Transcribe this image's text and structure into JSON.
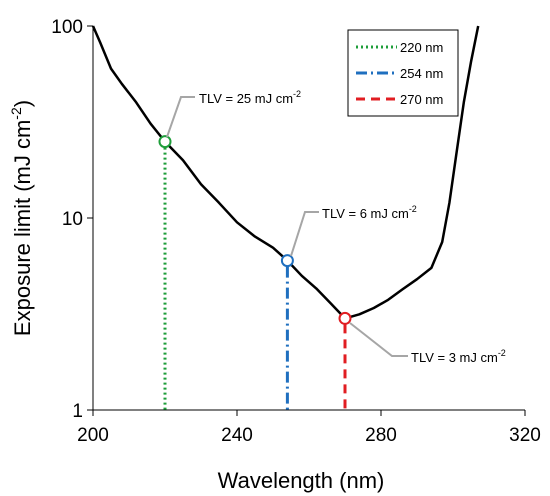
{
  "chart_data": {
    "type": "line",
    "title": "",
    "xlabel": "Wavelength (nm)",
    "ylabel": "Exposure limit (mJ cm",
    "ylabel_sup": "-2",
    "ylabel_close": ")",
    "xlim": [
      200,
      320
    ],
    "ylim": [
      1,
      100
    ],
    "yscale": "log",
    "grid": false,
    "legend_position": "top-right",
    "x_ticks": [
      {
        "value": 200,
        "label": "200"
      },
      {
        "value": 240,
        "label": "240"
      },
      {
        "value": 280,
        "label": "280"
      },
      {
        "value": 320,
        "label": "320"
      }
    ],
    "y_ticks": [
      {
        "value": 1,
        "label": "1"
      },
      {
        "value": 10,
        "label": "10"
      },
      {
        "value": 100,
        "label": "100"
      }
    ],
    "curve": {
      "color": "#000000",
      "points": [
        [
          200,
          100
        ],
        [
          202,
          82
        ],
        [
          205,
          60
        ],
        [
          208,
          50
        ],
        [
          212,
          40
        ],
        [
          216,
          31
        ],
        [
          220,
          25
        ],
        [
          225,
          20
        ],
        [
          230,
          15
        ],
        [
          235,
          12
        ],
        [
          240,
          9.5
        ],
        [
          245,
          8
        ],
        [
          250,
          7
        ],
        [
          254,
          6
        ],
        [
          258,
          5
        ],
        [
          262,
          4.3
        ],
        [
          266,
          3.6
        ],
        [
          270,
          3.0
        ],
        [
          274,
          3.15
        ],
        [
          278,
          3.4
        ],
        [
          282,
          3.75
        ],
        [
          286,
          4.25
        ],
        [
          290,
          4.8
        ],
        [
          294,
          5.5
        ],
        [
          297,
          7.5
        ],
        [
          299,
          12
        ],
        [
          301,
          22
        ],
        [
          303,
          40
        ],
        [
          305,
          65
        ],
        [
          307,
          100
        ]
      ]
    },
    "markers": [
      {
        "wavelength": 220,
        "value": 25,
        "color": "#1e9e3a",
        "style": "dotted",
        "callout_pre": "TLV = 25 mJ cm",
        "callout_sup": "-2"
      },
      {
        "wavelength": 254,
        "value": 6,
        "color": "#1f6fbf",
        "style": "dashdot",
        "callout_pre": "TLV = 6 mJ cm",
        "callout_sup": "-2"
      },
      {
        "wavelength": 270,
        "value": 3,
        "color": "#e11d22",
        "style": "dashed",
        "callout_pre": "TLV = 3 mJ cm",
        "callout_sup": "-2"
      }
    ],
    "legend": [
      {
        "label": "220 nm",
        "color": "#1e9e3a",
        "style": "dotted"
      },
      {
        "label": "254 nm",
        "color": "#1f6fbf",
        "style": "dashdot"
      },
      {
        "label": "270 nm",
        "color": "#e11d22",
        "style": "dashed"
      }
    ]
  }
}
